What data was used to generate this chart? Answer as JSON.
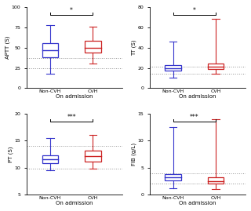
{
  "panels": [
    {
      "ylabel": "APTT (S)",
      "xlabel": "On admission",
      "ylim": [
        0,
        100
      ],
      "yticks": [
        0,
        25,
        50,
        75,
        100
      ],
      "hlines": [
        25,
        37
      ],
      "significance": "*",
      "groups": [
        {
          "label": "Non-CVH",
          "color": "#3535cc",
          "median": 47,
          "q1": 38,
          "q3": 55,
          "whislo": 18,
          "whishi": 78
        },
        {
          "label": "CVH",
          "color": "#cc2222",
          "median": 50,
          "q1": 44,
          "q3": 58,
          "whislo": 30,
          "whishi": 76
        }
      ]
    },
    {
      "ylabel": "TT (S)",
      "xlabel": "On admission",
      "ylim": [
        0,
        80
      ],
      "yticks": [
        0,
        20,
        40,
        60,
        80
      ],
      "hlines": [
        14,
        21
      ],
      "significance": "*",
      "groups": [
        {
          "label": "Non-CVH",
          "color": "#3535cc",
          "median": 20,
          "q1": 17,
          "q3": 23,
          "whislo": 10,
          "whishi": 46
        },
        {
          "label": "CVH",
          "color": "#cc2222",
          "median": 21,
          "q1": 19,
          "q3": 24,
          "whislo": 14,
          "whishi": 68
        }
      ]
    },
    {
      "ylabel": "PT (S)",
      "xlabel": "On admission",
      "ylim": [
        5,
        20
      ],
      "yticks": [
        5,
        10,
        15,
        20
      ],
      "hlines": [
        9.8,
        14.0
      ],
      "significance": "***",
      "groups": [
        {
          "label": "Non-CVH",
          "color": "#3535cc",
          "median": 11.5,
          "q1": 10.8,
          "q3": 12.3,
          "whislo": 9.5,
          "whishi": 15.5
        },
        {
          "label": "CVH",
          "color": "#cc2222",
          "median": 12.2,
          "q1": 11.2,
          "q3": 13.2,
          "whislo": 9.8,
          "whishi": 16.0
        }
      ]
    },
    {
      "ylabel": "FIB (g/L)",
      "xlabel": "On admission",
      "ylim": [
        0,
        15
      ],
      "yticks": [
        0,
        5,
        10,
        15
      ],
      "hlines": [
        2,
        4
      ],
      "significance": "***",
      "groups": [
        {
          "label": "Non-CVH",
          "color": "#3535cc",
          "median": 3.2,
          "q1": 2.7,
          "q3": 3.8,
          "whislo": 1.2,
          "whishi": 12.5
        },
        {
          "label": "CVH",
          "color": "#cc2222",
          "median": 2.5,
          "q1": 2.0,
          "q3": 3.2,
          "whislo": 1.0,
          "whishi": 14.0
        }
      ]
    }
  ],
  "background_color": "#ffffff"
}
